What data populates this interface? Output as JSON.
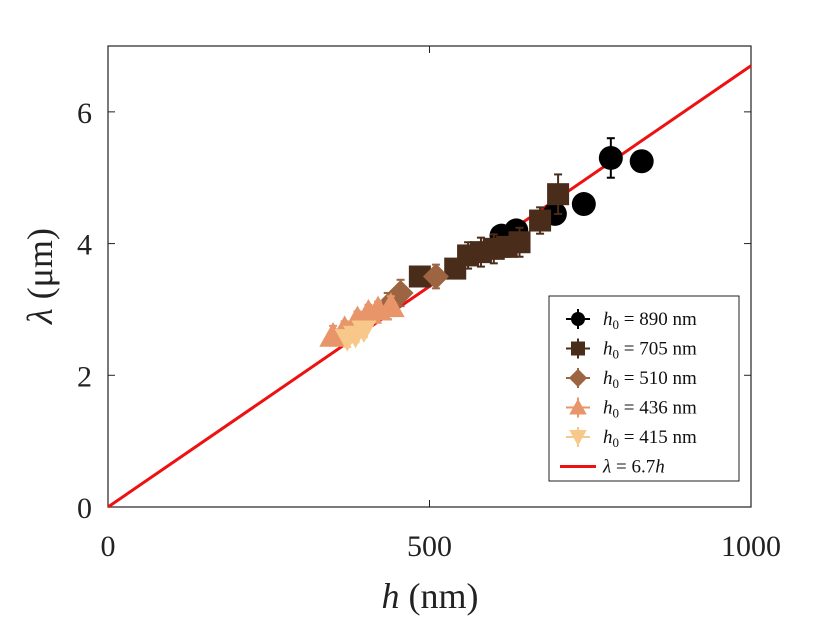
{
  "chart_data": {
    "type": "scatter",
    "xlabel_italic": "h",
    "xlabel_rest": " (nm)",
    "ylabel_italic": "λ",
    "ylabel_rest": " (μm)",
    "xlim": [
      0,
      1000
    ],
    "ylim": [
      0,
      7
    ],
    "xticks": [
      0,
      500,
      1000
    ],
    "xtick_labels": [
      "0",
      "500",
      "1000"
    ],
    "yticks": [
      0,
      2,
      4,
      6
    ],
    "ytick_labels": [
      "0",
      "2",
      "4",
      "6"
    ],
    "legend_position": "bottom-right",
    "series": [
      {
        "name": "h0 = 890 nm",
        "legend_var": "h",
        "legend_sub": "0",
        "legend_rest": " = 890 nm",
        "marker": "circle",
        "color": "#000000",
        "points": [
          {
            "x": 612,
            "y": 4.12,
            "yerr": 0.15
          },
          {
            "x": 635,
            "y": 4.2,
            "yerr": 0.1
          },
          {
            "x": 695,
            "y": 4.45,
            "yerr": 0.1
          },
          {
            "x": 740,
            "y": 4.6,
            "yerr": 0.0
          },
          {
            "x": 782,
            "y": 5.3,
            "yerr": 0.3
          },
          {
            "x": 830,
            "y": 5.25,
            "yerr": 0.0
          }
        ]
      },
      {
        "name": "h0 = 705 nm",
        "legend_var": "h",
        "legend_sub": "0",
        "legend_rest": " = 705 nm",
        "marker": "square",
        "color": "#4a2c1a",
        "points": [
          {
            "x": 485,
            "y": 3.5,
            "yerr": 0.1
          },
          {
            "x": 540,
            "y": 3.62,
            "yerr": 0.12
          },
          {
            "x": 560,
            "y": 3.82,
            "yerr": 0.2
          },
          {
            "x": 580,
            "y": 3.87,
            "yerr": 0.22
          },
          {
            "x": 600,
            "y": 3.92,
            "yerr": 0.22
          },
          {
            "x": 620,
            "y": 3.95,
            "yerr": 0.15
          },
          {
            "x": 640,
            "y": 4.02,
            "yerr": 0.22
          },
          {
            "x": 672,
            "y": 4.35,
            "yerr": 0.2
          },
          {
            "x": 700,
            "y": 4.75,
            "yerr": 0.3
          }
        ]
      },
      {
        "name": "h0 = 510 nm",
        "legend_var": "h",
        "legend_sub": "0",
        "legend_rest": " = 510 nm",
        "marker": "diamond",
        "color": "#9c6440",
        "points": [
          {
            "x": 435,
            "y": 3.05,
            "yerr": 0.2
          },
          {
            "x": 455,
            "y": 3.25,
            "yerr": 0.2
          },
          {
            "x": 510,
            "y": 3.5,
            "yerr": 0.18
          }
        ]
      },
      {
        "name": "h0 = 436 nm",
        "legend_var": "h",
        "legend_sub": "0",
        "legend_rest": " = 436 nm",
        "marker": "triangle-up",
        "color": "#e8956a",
        "points": [
          {
            "x": 350,
            "y": 2.6,
            "yerr": 0.15
          },
          {
            "x": 368,
            "y": 2.7,
            "yerr": 0.12
          },
          {
            "x": 388,
            "y": 2.85,
            "yerr": 0.12
          },
          {
            "x": 405,
            "y": 2.95,
            "yerr": 0.12
          },
          {
            "x": 420,
            "y": 3.0,
            "yerr": 0.12
          },
          {
            "x": 440,
            "y": 3.05,
            "yerr": 0.15
          }
        ]
      },
      {
        "name": "h0 = 415 nm",
        "legend_var": "h",
        "legend_sub": "0",
        "legend_rest": " = 415 nm",
        "marker": "triangle-down",
        "color": "#f7c88a",
        "points": [
          {
            "x": 372,
            "y": 2.55,
            "yerr": 0.12
          },
          {
            "x": 385,
            "y": 2.6,
            "yerr": 0.1
          },
          {
            "x": 398,
            "y": 2.68,
            "yerr": 0.1
          }
        ]
      }
    ],
    "fit": {
      "name": "λ = 6.7h",
      "legend_var": "λ",
      "legend_rest": " = 6.7",
      "legend_var2": "h",
      "slope_um_per_nm": 0.0067,
      "color": "#ee1111"
    }
  }
}
